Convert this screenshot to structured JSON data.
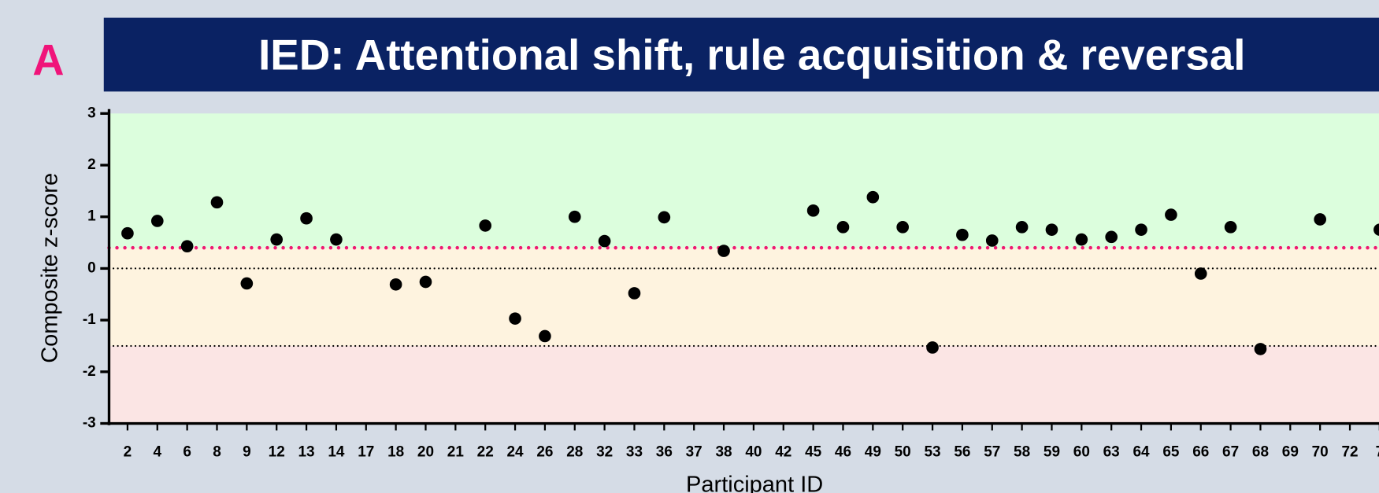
{
  "panel_label": "A",
  "chart_data": {
    "type": "dot",
    "title": "IED: Attentional shift, rule acquisition & reversal",
    "x_label": "Participant ID",
    "y_label": "Composite z-score",
    "categories": [
      "2",
      "4",
      "6",
      "8",
      "9",
      "12",
      "13",
      "14",
      "17",
      "18",
      "20",
      "21",
      "22",
      "24",
      "26",
      "28",
      "32",
      "33",
      "36",
      "37",
      "38",
      "40",
      "42",
      "45",
      "46",
      "49",
      "50",
      "53",
      "56",
      "57",
      "58",
      "59",
      "60",
      "63",
      "64",
      "65",
      "66",
      "67",
      "68",
      "69",
      "70",
      "72",
      "7"
    ],
    "values": [
      0.68,
      0.92,
      0.43,
      1.28,
      -0.29,
      0.56,
      0.97,
      0.56,
      null,
      -0.31,
      -0.26,
      null,
      0.83,
      -0.97,
      -1.31,
      1.0,
      0.53,
      -0.48,
      0.99,
      null,
      0.34,
      null,
      null,
      1.12,
      0.8,
      1.38,
      0.8,
      -1.53,
      0.65,
      0.54,
      0.8,
      0.75,
      0.56,
      0.61,
      0.75,
      1.04,
      -0.1,
      0.8,
      -1.56,
      null,
      0.95,
      null,
      0.75
    ],
    "color": "#000000",
    "ylim": [
      -3,
      3
    ],
    "yticks": [
      -3,
      -2,
      -1,
      0,
      1,
      2,
      3
    ],
    "bands": [
      {
        "from": 0.4,
        "to": 3,
        "color": "#dcfedd"
      },
      {
        "from": -1.5,
        "to": 0.4,
        "color": "#fef3df"
      },
      {
        "from": -3,
        "to": -1.5,
        "color": "#fbe5e4"
      }
    ],
    "reference_lines": [
      {
        "value": 0.4,
        "color": "#ee1a72"
      },
      {
        "value": 0,
        "color": "#000000"
      },
      {
        "value": -1.5,
        "color": "#000000"
      }
    ]
  }
}
